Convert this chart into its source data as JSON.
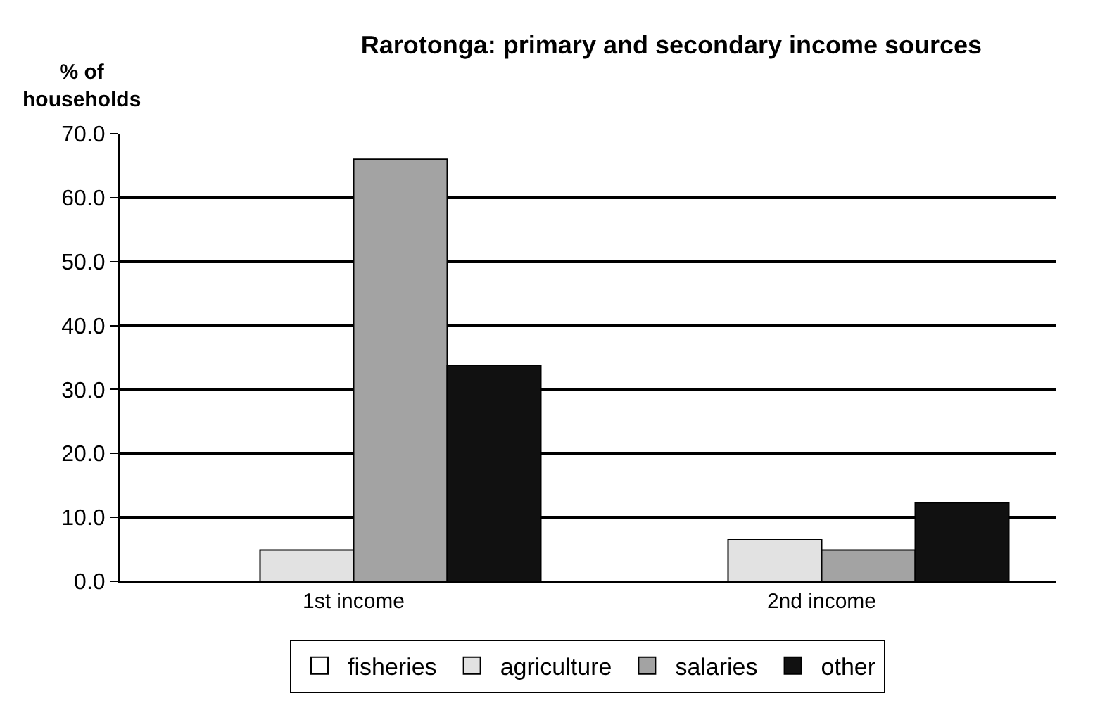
{
  "chart_data": {
    "type": "bar",
    "title": "Rarotonga: primary and secondary income sources",
    "ylabel": "% of households",
    "categories": [
      "1st income",
      "2nd income"
    ],
    "series": [
      {
        "name": "fisheries",
        "color": "#ffffff",
        "values": [
          0.0,
          0.0
        ]
      },
      {
        "name": "agriculture",
        "color": "#e2e2e2",
        "values": [
          4.9,
          6.5
        ]
      },
      {
        "name": "salaries",
        "color": "#a3a3a3",
        "values": [
          66.0,
          4.9
        ]
      },
      {
        "name": "other",
        "color": "#111111",
        "values": [
          33.8,
          12.3
        ]
      }
    ],
    "ylim": [
      0,
      70
    ],
    "yticks": [
      {
        "value": 0,
        "label": "0.0"
      },
      {
        "value": 10,
        "label": "10.0"
      },
      {
        "value": 20,
        "label": "20.0"
      },
      {
        "value": 30,
        "label": "30.0"
      },
      {
        "value": 40,
        "label": "40.0"
      },
      {
        "value": 50,
        "label": "50.0"
      },
      {
        "value": 60,
        "label": "60.0"
      },
      {
        "value": 70,
        "label": "70.0"
      }
    ],
    "grid": "y",
    "legend": "bottom"
  }
}
